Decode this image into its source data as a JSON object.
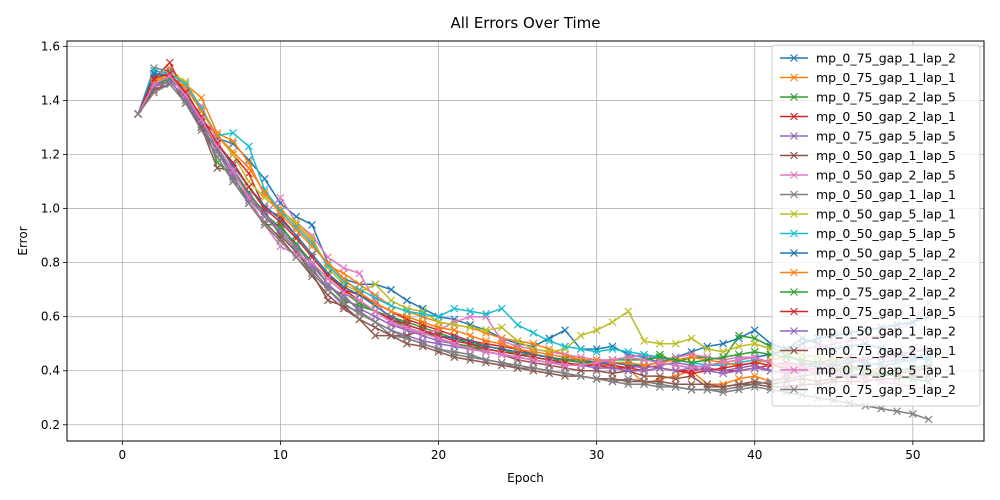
{
  "chart_data": {
    "type": "line",
    "title": "All Errors Over Time",
    "xlabel": "Epoch",
    "ylabel": "Error",
    "xlim": [
      -3.5,
      54.5
    ],
    "ylim": [
      0.14,
      1.62
    ],
    "xticks": [
      0,
      10,
      20,
      30,
      40,
      50
    ],
    "yticks": [
      0.2,
      0.4,
      0.6,
      0.8,
      1.0,
      1.2,
      1.4,
      1.6
    ],
    "ytick_labels": [
      "0.2",
      "0.4",
      "0.6",
      "0.8",
      "1.0",
      "1.2",
      "1.4",
      "1.6"
    ],
    "grid": true,
    "legend_position": "top-right",
    "marker": "x",
    "x": [
      1,
      2,
      3,
      4,
      5,
      6,
      7,
      8,
      9,
      10,
      11,
      12,
      13,
      14,
      15,
      16,
      17,
      18,
      19,
      20,
      21,
      22,
      23,
      24,
      25,
      26,
      27,
      28,
      29,
      30,
      31,
      32,
      33,
      34,
      35,
      36,
      37,
      38,
      39,
      40,
      41,
      42,
      43,
      44,
      45,
      46,
      47,
      48,
      49,
      50,
      51
    ],
    "series": [
      {
        "name": "mp_0_75_gap_1_lap_2",
        "color": "#1f77b4",
        "values": [
          1.35,
          1.49,
          1.5,
          1.46,
          1.37,
          1.26,
          1.24,
          1.18,
          1.11,
          1.02,
          0.97,
          0.94,
          0.8,
          0.74,
          0.72,
          0.72,
          0.7,
          0.66,
          0.63,
          0.6,
          0.59,
          0.57,
          0.55,
          0.52,
          0.5,
          0.49,
          0.52,
          0.55,
          0.48,
          0.48,
          0.49,
          0.46,
          0.45,
          0.43,
          0.45,
          0.47,
          0.49,
          0.5,
          0.52,
          0.55,
          0.5,
          0.48,
          0.52,
          0.5,
          0.48,
          0.49,
          0.5,
          0.48,
          0.46,
          0.45,
          0.44
        ]
      },
      {
        "name": "mp_0_75_gap_1_lap_1",
        "color": "#ff7f0e",
        "values": [
          1.35,
          1.48,
          1.52,
          1.46,
          1.41,
          1.28,
          1.25,
          1.17,
          1.05,
          1.0,
          0.94,
          0.88,
          0.79,
          0.76,
          0.72,
          0.68,
          0.64,
          0.62,
          0.6,
          0.58,
          0.57,
          0.56,
          0.54,
          0.52,
          0.51,
          0.5,
          0.48,
          0.46,
          0.44,
          0.42,
          0.42,
          0.41,
          0.35,
          0.37,
          0.38,
          0.4,
          0.35,
          0.35,
          0.37,
          0.38,
          0.36,
          0.38,
          0.4,
          0.39,
          0.4,
          0.42,
          0.4,
          0.41,
          0.43,
          0.45,
          0.46
        ]
      },
      {
        "name": "mp_0_75_gap_2_lap_5",
        "color": "#2ca02c",
        "values": [
          1.35,
          1.46,
          1.47,
          1.44,
          1.33,
          1.17,
          1.12,
          1.02,
          0.94,
          0.94,
          0.86,
          0.8,
          0.72,
          0.66,
          0.64,
          0.62,
          0.6,
          0.58,
          0.56,
          0.54,
          0.52,
          0.5,
          0.49,
          0.48,
          0.46,
          0.46,
          0.45,
          0.44,
          0.43,
          0.43,
          0.44,
          0.44,
          0.44,
          0.46,
          0.43,
          0.45,
          0.45,
          0.44,
          0.53,
          0.52,
          0.49,
          0.46,
          0.43,
          0.41,
          0.4,
          0.39,
          0.38,
          0.39,
          0.4,
          0.41,
          0.42
        ]
      },
      {
        "name": "mp_0_50_gap_2_lap_1",
        "color": "#d62728",
        "values": [
          1.35,
          1.48,
          1.54,
          1.42,
          1.33,
          1.27,
          1.2,
          1.13,
          1.0,
          0.97,
          0.9,
          0.83,
          0.76,
          0.7,
          0.68,
          0.65,
          0.62,
          0.59,
          0.57,
          0.55,
          0.53,
          0.51,
          0.5,
          0.49,
          0.48,
          0.46,
          0.45,
          0.44,
          0.43,
          0.43,
          0.42,
          0.41,
          0.42,
          0.41,
          0.4,
          0.4,
          0.41,
          0.4,
          0.4,
          0.41,
          0.42,
          0.43,
          0.42,
          0.43,
          0.44,
          0.45,
          0.44,
          0.45,
          0.46,
          0.47,
          0.48
        ]
      },
      {
        "name": "mp_0_75_gap_5_lap_5",
        "color": "#9467bd",
        "values": [
          1.35,
          1.45,
          1.49,
          1.42,
          1.32,
          1.23,
          1.12,
          1.03,
          0.99,
          0.9,
          0.84,
          0.78,
          0.7,
          0.64,
          0.62,
          0.58,
          0.55,
          0.53,
          0.51,
          0.5,
          0.49,
          0.48,
          0.47,
          0.46,
          0.45,
          0.44,
          0.43,
          0.43,
          0.42,
          0.42,
          0.43,
          0.42,
          0.41,
          0.42,
          0.43,
          0.42,
          0.41,
          0.4,
          0.41,
          0.42,
          0.4,
          0.39,
          0.4,
          0.41,
          0.4,
          0.41,
          0.42,
          0.43,
          0.44,
          0.45,
          0.46
        ]
      },
      {
        "name": "mp_0_50_gap_1_lap_5",
        "color": "#8c564b",
        "values": [
          1.35,
          1.43,
          1.48,
          1.39,
          1.3,
          1.15,
          1.14,
          1.05,
          0.99,
          0.9,
          0.84,
          0.76,
          0.66,
          0.64,
          0.59,
          0.53,
          0.53,
          0.53,
          0.55,
          0.52,
          0.5,
          0.49,
          0.47,
          0.46,
          0.44,
          0.43,
          0.42,
          0.41,
          0.4,
          0.4,
          0.39,
          0.4,
          0.38,
          0.38,
          0.37,
          0.38,
          0.34,
          0.34,
          0.35,
          0.36,
          0.35,
          0.36,
          0.37,
          0.36,
          0.37,
          0.38,
          0.39,
          0.38,
          0.39,
          0.4,
          0.41
        ]
      },
      {
        "name": "mp_0_50_gap_2_lap_5",
        "color": "#e377c2",
        "values": [
          1.35,
          1.45,
          1.47,
          1.44,
          1.38,
          1.25,
          1.15,
          1.06,
          0.98,
          1.04,
          0.95,
          0.9,
          0.82,
          0.78,
          0.76,
          0.66,
          0.58,
          0.55,
          0.54,
          0.55,
          0.58,
          0.6,
          0.6,
          0.51,
          0.49,
          0.48,
          0.47,
          0.46,
          0.45,
          0.44,
          0.44,
          0.45,
          0.46,
          0.44,
          0.45,
          0.46,
          0.45,
          0.44,
          0.45,
          0.45,
          0.46,
          0.47,
          0.48,
          0.49,
          0.5,
          0.51,
          0.52,
          0.53,
          0.55,
          0.58,
          0.65
        ]
      },
      {
        "name": "mp_0_50_gap_1_lap_1",
        "color": "#7f7f7f",
        "values": [
          1.35,
          1.52,
          1.51,
          1.4,
          1.31,
          1.21,
          1.11,
          1.04,
          0.97,
          0.91,
          0.85,
          0.77,
          0.71,
          0.68,
          0.62,
          0.58,
          0.53,
          0.52,
          0.5,
          0.48,
          0.47,
          0.46,
          0.44,
          0.43,
          0.41,
          0.41,
          0.4,
          0.39,
          0.38,
          0.37,
          0.36,
          0.37,
          0.36,
          0.35,
          0.34,
          0.33,
          0.33,
          0.33,
          0.34,
          0.35,
          0.36,
          0.37,
          0.38,
          0.39,
          0.4,
          0.41,
          0.4,
          0.39,
          0.38,
          0.37,
          0.36
        ]
      },
      {
        "name": "mp_0_50_gap_5_lap_1",
        "color": "#bcbd22",
        "values": [
          1.35,
          1.47,
          1.5,
          1.47,
          1.37,
          1.27,
          1.2,
          1.1,
          1.04,
          0.99,
          0.95,
          0.89,
          0.78,
          0.72,
          0.69,
          0.72,
          0.66,
          0.63,
          0.62,
          0.58,
          0.57,
          0.56,
          0.55,
          0.56,
          0.51,
          0.48,
          0.47,
          0.48,
          0.53,
          0.55,
          0.58,
          0.62,
          0.51,
          0.5,
          0.5,
          0.52,
          0.48,
          0.47,
          0.49,
          0.5,
          0.48,
          0.47,
          0.46,
          0.45,
          0.44,
          0.43,
          0.44,
          0.45,
          0.46,
          0.47,
          0.48
        ]
      },
      {
        "name": "mp_0_50_gap_5_lap_5",
        "color": "#17becf",
        "values": [
          1.35,
          1.51,
          1.5,
          1.46,
          1.37,
          1.27,
          1.28,
          1.23,
          1.07,
          0.99,
          0.93,
          0.87,
          0.79,
          0.73,
          0.7,
          0.67,
          0.64,
          0.62,
          0.61,
          0.6,
          0.63,
          0.62,
          0.61,
          0.63,
          0.57,
          0.54,
          0.51,
          0.49,
          0.48,
          0.47,
          0.48,
          0.47,
          0.46,
          0.45,
          0.44,
          0.43,
          0.42,
          0.42,
          0.43,
          0.44,
          0.43,
          0.42,
          0.41,
          0.42,
          0.43,
          0.44,
          0.43,
          0.42,
          0.43,
          0.44,
          0.45
        ]
      },
      {
        "name": "mp_0_50_gap_5_lap_2",
        "color": "#1f77b4",
        "values": [
          1.35,
          1.5,
          1.49,
          1.43,
          1.34,
          1.24,
          1.16,
          1.08,
          1.01,
          0.96,
          0.9,
          0.83,
          0.76,
          0.71,
          0.68,
          0.64,
          0.6,
          0.57,
          0.55,
          0.53,
          0.52,
          0.51,
          0.49,
          0.48,
          0.47,
          0.46,
          0.45,
          0.44,
          0.44,
          0.43,
          0.43,
          0.42,
          0.42,
          0.43,
          0.42,
          0.41,
          0.42,
          0.43,
          0.44,
          0.45,
          0.46,
          0.48,
          0.5,
          0.52,
          0.53,
          0.54,
          0.55,
          0.56,
          0.57,
          0.58,
          0.6
        ]
      },
      {
        "name": "mp_0_50_gap_2_lap_2",
        "color": "#ff7f0e",
        "values": [
          1.35,
          1.47,
          1.49,
          1.45,
          1.36,
          1.27,
          1.21,
          1.15,
          1.06,
          0.98,
          0.92,
          0.86,
          0.8,
          0.74,
          0.69,
          0.65,
          0.62,
          0.6,
          0.58,
          0.56,
          0.55,
          0.53,
          0.51,
          0.5,
          0.48,
          0.47,
          0.46,
          0.45,
          0.44,
          0.44,
          0.43,
          0.43,
          0.42,
          0.43,
          0.44,
          0.45,
          0.44,
          0.43,
          0.42,
          0.43,
          0.44,
          0.45,
          0.44,
          0.43,
          0.42,
          0.43,
          0.44,
          0.45,
          0.46,
          0.47,
          0.48
        ]
      },
      {
        "name": "mp_0_75_gap_2_lap_2",
        "color": "#2ca02c",
        "values": [
          1.35,
          1.46,
          1.48,
          1.43,
          1.33,
          1.22,
          1.14,
          1.06,
          0.98,
          0.93,
          0.87,
          0.8,
          0.74,
          0.69,
          0.65,
          0.62,
          0.59,
          0.56,
          0.54,
          0.52,
          0.5,
          0.49,
          0.48,
          0.47,
          0.46,
          0.45,
          0.44,
          0.44,
          0.43,
          0.43,
          0.44,
          0.45,
          0.44,
          0.45,
          0.44,
          0.43,
          0.44,
          0.45,
          0.46,
          0.47,
          0.46,
          0.45,
          0.44,
          0.43,
          0.42,
          0.41,
          0.4,
          0.39,
          0.38,
          0.37,
          0.36
        ]
      },
      {
        "name": "mp_0_75_gap_1_lap_5",
        "color": "#d62728",
        "values": [
          1.35,
          1.48,
          1.5,
          1.43,
          1.34,
          1.24,
          1.17,
          1.08,
          1.0,
          0.95,
          0.89,
          0.82,
          0.75,
          0.7,
          0.66,
          0.62,
          0.59,
          0.57,
          0.55,
          0.53,
          0.51,
          0.5,
          0.48,
          0.47,
          0.46,
          0.45,
          0.44,
          0.43,
          0.42,
          0.42,
          0.41,
          0.41,
          0.4,
          0.41,
          0.4,
          0.39,
          0.4,
          0.41,
          0.42,
          0.43,
          0.42,
          0.41,
          0.4,
          0.41,
          0.42,
          0.43,
          0.44,
          0.45,
          0.46,
          0.47,
          0.48
        ]
      },
      {
        "name": "mp_0_50_gap_1_lap_2",
        "color": "#9467bd",
        "values": [
          1.35,
          1.45,
          1.47,
          1.41,
          1.31,
          1.21,
          1.13,
          1.05,
          0.98,
          0.92,
          0.86,
          0.79,
          0.72,
          0.67,
          0.63,
          0.6,
          0.57,
          0.55,
          0.53,
          0.51,
          0.5,
          0.48,
          0.47,
          0.46,
          0.45,
          0.44,
          0.43,
          0.42,
          0.42,
          0.41,
          0.41,
          0.4,
          0.4,
          0.41,
          0.4,
          0.41,
          0.4,
          0.39,
          0.4,
          0.41,
          0.4,
          0.39,
          0.4,
          0.41,
          0.42,
          0.43,
          0.44,
          0.45,
          0.46,
          0.47,
          0.48
        ]
      },
      {
        "name": "mp_0_75_gap_2_lap_1",
        "color": "#8c564b",
        "values": [
          1.35,
          1.44,
          1.46,
          1.39,
          1.3,
          1.19,
          1.1,
          1.02,
          0.95,
          0.89,
          0.82,
          0.75,
          0.68,
          0.63,
          0.59,
          0.56,
          0.53,
          0.5,
          0.49,
          0.47,
          0.45,
          0.44,
          0.43,
          0.42,
          0.41,
          0.4,
          0.39,
          0.38,
          0.38,
          0.37,
          0.37,
          0.36,
          0.36,
          0.36,
          0.35,
          0.35,
          0.35,
          0.34,
          0.35,
          0.35,
          0.34,
          0.34,
          0.35,
          0.35,
          0.36,
          0.36,
          0.36,
          0.37,
          0.37,
          0.38,
          0.38
        ]
      },
      {
        "name": "mp_0_75_gap_5_lap_1",
        "color": "#e377c2",
        "values": [
          1.35,
          1.46,
          1.49,
          1.42,
          1.33,
          1.23,
          1.14,
          1.04,
          0.94,
          0.86,
          0.83,
          0.8,
          0.74,
          0.69,
          0.66,
          0.62,
          0.58,
          0.56,
          0.54,
          0.52,
          0.5,
          0.48,
          0.47,
          0.46,
          0.45,
          0.44,
          0.43,
          0.42,
          0.42,
          0.43,
          0.44,
          0.45,
          0.44,
          0.43,
          0.42,
          0.41,
          0.42,
          0.43,
          0.44,
          0.45,
          0.43,
          0.42,
          0.41,
          0.4,
          0.39,
          0.38,
          0.37,
          0.36,
          0.35,
          0.34,
          0.33
        ]
      },
      {
        "name": "mp_0_75_gap_5_lap_2",
        "color": "#7f7f7f",
        "values": [
          1.35,
          1.43,
          1.46,
          1.39,
          1.29,
          1.19,
          1.1,
          1.02,
          0.94,
          0.88,
          0.82,
          0.76,
          0.7,
          0.65,
          0.61,
          0.58,
          0.55,
          0.52,
          0.5,
          0.48,
          0.46,
          0.45,
          0.44,
          0.43,
          0.42,
          0.41,
          0.4,
          0.39,
          0.38,
          0.37,
          0.36,
          0.35,
          0.35,
          0.34,
          0.34,
          0.33,
          0.33,
          0.32,
          0.33,
          0.34,
          0.33,
          0.32,
          0.31,
          0.3,
          0.29,
          0.28,
          0.27,
          0.26,
          0.25,
          0.24,
          0.22
        ]
      }
    ]
  }
}
